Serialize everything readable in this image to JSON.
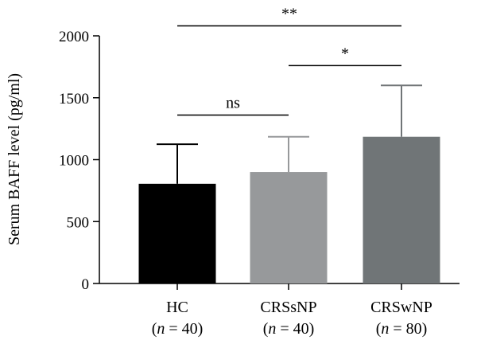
{
  "chart_data": {
    "type": "bar",
    "ylabel": "Serum BAFF level (pg/ml)",
    "ylim": [
      0,
      2000
    ],
    "yticks": [
      0,
      500,
      1000,
      1500,
      2000
    ],
    "grid": false,
    "categories": [
      {
        "name": "HC",
        "n_label": "(n = 40)",
        "value": 805,
        "error": 320,
        "color": "#000000"
      },
      {
        "name": "CRSsNP",
        "n_label": "(n = 40)",
        "value": 900,
        "error": 285,
        "color": "#97999b"
      },
      {
        "name": "CRSwNP",
        "n_label": "(n = 80)",
        "value": 1185,
        "error": 415,
        "color": "#707577"
      }
    ],
    "significance": [
      {
        "from": 0,
        "to": 2,
        "label": "**",
        "y": 2080
      },
      {
        "from": 1,
        "to": 2,
        "label": "*",
        "y": 1760
      },
      {
        "from": 0,
        "to": 1,
        "label": "ns",
        "y": 1360
      }
    ]
  }
}
